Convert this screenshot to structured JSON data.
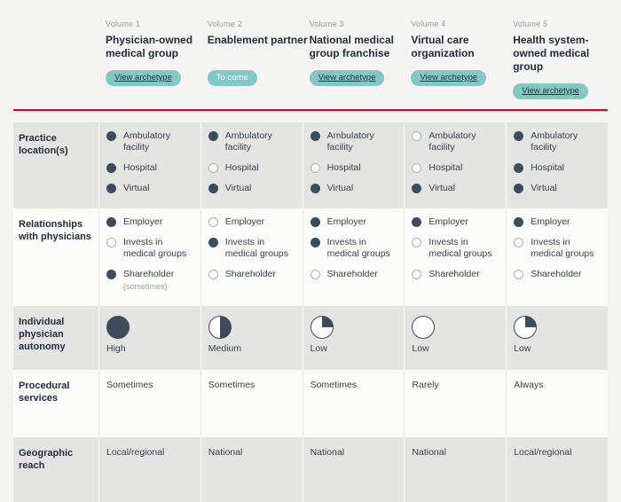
{
  "colors": {
    "accent_red": "#e3001b",
    "badge_teal": "#85c8c3",
    "dark_slate": "#3e4c59",
    "row_grey": "#e4e4e3",
    "row_white": "#fbfbfa",
    "page_bg": "#f4f4f2"
  },
  "header": {
    "columns": [
      {
        "volume": "Volume 1",
        "title": "Physician-owned medical group",
        "badge": "View archetype",
        "badge_style": "link"
      },
      {
        "volume": "Volume 2",
        "title": "Enablement partner",
        "badge": "To come",
        "badge_style": "plain"
      },
      {
        "volume": "Volume 3",
        "title": "National medical group franchise",
        "badge": "View archetype",
        "badge_style": "link"
      },
      {
        "volume": "Volume 4",
        "title": "Virtual care organization",
        "badge": "View archetype",
        "badge_style": "link"
      },
      {
        "volume": "Volume 5",
        "title": "Health system-owned medical group",
        "badge": "View archetype",
        "badge_style": "link"
      }
    ]
  },
  "table": {
    "rows": [
      {
        "label": "Practice location(s)",
        "type": "checklist",
        "cells": [
          {
            "items": [
              {
                "label": "Ambulatory facility",
                "filled": true
              },
              {
                "label": "Hospital",
                "filled": true
              },
              {
                "label": "Virtual",
                "filled": true
              }
            ]
          },
          {
            "items": [
              {
                "label": "Ambulatory facility",
                "filled": true
              },
              {
                "label": "Hospital",
                "filled": false
              },
              {
                "label": "Virtual",
                "filled": true
              }
            ]
          },
          {
            "items": [
              {
                "label": "Ambulatory facility",
                "filled": true
              },
              {
                "label": "Hospital",
                "filled": false
              },
              {
                "label": "Virtual",
                "filled": true
              }
            ]
          },
          {
            "items": [
              {
                "label": "Ambulatory facility",
                "filled": false
              },
              {
                "label": "Hospital",
                "filled": false
              },
              {
                "label": "Virtual",
                "filled": true
              }
            ]
          },
          {
            "items": [
              {
                "label": "Ambulatory facility",
                "filled": true
              },
              {
                "label": "Hospital",
                "filled": true
              },
              {
                "label": "Virtual",
                "filled": true
              }
            ]
          }
        ]
      },
      {
        "label": "Relationships with physicians",
        "type": "checklist",
        "cells": [
          {
            "items": [
              {
                "label": "Employer",
                "filled": true
              },
              {
                "label": "Invests in medical groups",
                "filled": false
              },
              {
                "label": "Shareholder",
                "filled": true,
                "note": "(sometimes)"
              }
            ]
          },
          {
            "items": [
              {
                "label": "Employer",
                "filled": false
              },
              {
                "label": "Invests in medical groups",
                "filled": true
              },
              {
                "label": "Shareholder",
                "filled": false
              }
            ]
          },
          {
            "items": [
              {
                "label": "Employer",
                "filled": true
              },
              {
                "label": "Invests in medical groups",
                "filled": true
              },
              {
                "label": "Shareholder",
                "filled": false
              }
            ]
          },
          {
            "items": [
              {
                "label": "Employer",
                "filled": true
              },
              {
                "label": "Invests in medical groups",
                "filled": false
              },
              {
                "label": "Shareholder",
                "filled": false
              }
            ]
          },
          {
            "items": [
              {
                "label": "Employer",
                "filled": true
              },
              {
                "label": "Invests in medical groups",
                "filled": false
              },
              {
                "label": "Shareholder",
                "filled": false
              }
            ]
          }
        ]
      },
      {
        "label": "Individual physician autonomy",
        "type": "gauge",
        "cells": [
          {
            "level": "High",
            "fill": 1
          },
          {
            "level": "Medium",
            "fill": 0.5
          },
          {
            "level": "Low",
            "fill": 0.25
          },
          {
            "level": "Low",
            "fill": 0
          },
          {
            "level": "Low",
            "fill": 0.25
          }
        ]
      },
      {
        "label": "Procedural services",
        "type": "text",
        "cells": [
          {
            "text": "Sometimes"
          },
          {
            "text": "Sometimes"
          },
          {
            "text": "Sometimes"
          },
          {
            "text": "Rarely"
          },
          {
            "text": "Always"
          }
        ]
      },
      {
        "label": "Geographic reach",
        "type": "text",
        "cells": [
          {
            "text": "Local/regional"
          },
          {
            "text": "National"
          },
          {
            "text": "National"
          },
          {
            "text": "National"
          },
          {
            "text": "Local/regional"
          }
        ]
      }
    ]
  }
}
